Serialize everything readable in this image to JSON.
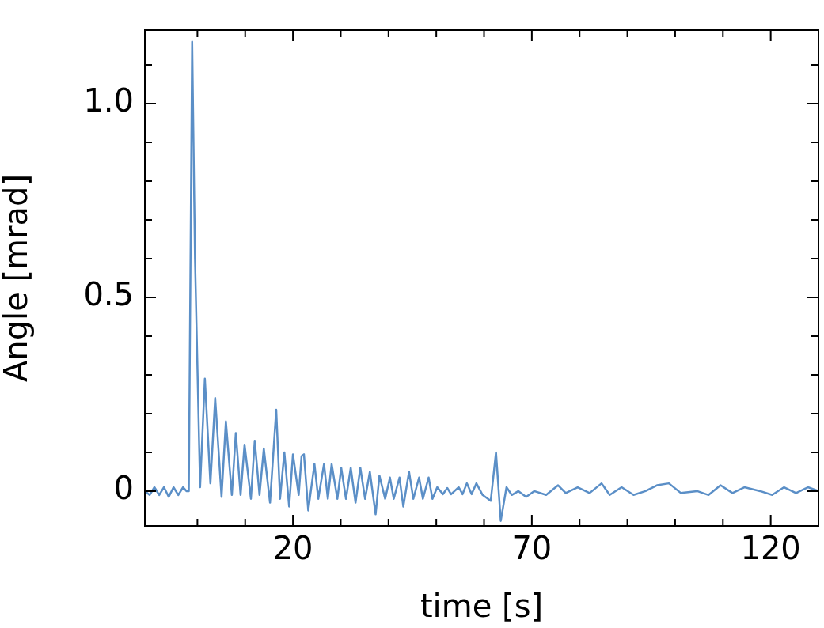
{
  "chart_data": {
    "type": "line",
    "xlabel": "time [s]",
    "ylabel": "Angle [mrad]",
    "xlim": [
      -11,
      130
    ],
    "ylim": [
      -0.09,
      1.19
    ],
    "xticks": [
      {
        "value": 0,
        "label": null
      },
      {
        "value": 10,
        "label": null
      },
      20,
      {
        "value": 30,
        "label": null
      },
      {
        "value": 40,
        "label": null
      },
      {
        "value": 50,
        "label": null
      },
      {
        "value": 60,
        "label": null
      },
      70,
      {
        "value": 80,
        "label": null
      },
      {
        "value": 90,
        "label": null
      },
      {
        "value": 100,
        "label": null
      },
      {
        "value": 110,
        "label": null
      },
      120
    ],
    "yticks": [
      0,
      {
        "value": 0.1,
        "label": null
      },
      {
        "value": 0.2,
        "label": null
      },
      {
        "value": 0.3,
        "label": null
      },
      {
        "value": 0.4,
        "label": null
      },
      0.5,
      {
        "value": 0.6,
        "label": null
      },
      {
        "value": 0.7,
        "label": null
      },
      {
        "value": 0.8,
        "label": null
      },
      {
        "value": 0.9,
        "label": null
      },
      {
        "value": 1.0,
        "label": "1.0"
      },
      {
        "value": 1.1,
        "label": null
      }
    ],
    "grid": false,
    "legend": false,
    "marker": "none",
    "line_style": "solid",
    "series": [
      {
        "color": "#5b8fc7",
        "x": [
          -11,
          -10,
          -9,
          -8,
          -7,
          -6,
          -5,
          -4,
          -3,
          -2.3,
          -1.8,
          -1.1,
          -0.5,
          0.56,
          1.56,
          2.72,
          3.72,
          5.05,
          5.96,
          7.21,
          8.04,
          9.04,
          9.87,
          11.2,
          12.0,
          13.0,
          13.9,
          15.2,
          16.5,
          17.3,
          18.2,
          19.2,
          20,
          21.2,
          21.8,
          22.3,
          23.2,
          24.5,
          25.3,
          26.5,
          27.3,
          28.1,
          29.3,
          30.1,
          31.1,
          32.1,
          33.1,
          34.1,
          35.1,
          36.1,
          37.3,
          38.1,
          39.3,
          40.3,
          41.1,
          42.3,
          43.1,
          44.3,
          45.2,
          46.4,
          47.2,
          48.4,
          49.2,
          50.2,
          51.4,
          52.3,
          53.1,
          54.7,
          55.5,
          56.4,
          57.4,
          58.4,
          59.7,
          61.4,
          62.5,
          63.5,
          64.7,
          65.8,
          67.2,
          68.8,
          70.5,
          73,
          75.5,
          77.1,
          79.6,
          82.1,
          84.6,
          86.3,
          88.8,
          91.3,
          93.8,
          96.2,
          98.7,
          101.2,
          104.6,
          107,
          109.5,
          112,
          114.5,
          117.8,
          120.3,
          122.8,
          125.3,
          127.8,
          130
        ],
        "values": [
          0,
          -0.01,
          0.01,
          -0.01,
          0.01,
          -0.015,
          0.01,
          -0.01,
          0.01,
          0,
          0,
          1.16,
          0.6,
          0.01,
          0.29,
          0.02,
          0.24,
          -0.015,
          0.18,
          -0.01,
          0.15,
          -0.01,
          0.12,
          -0.02,
          0.13,
          -0.01,
          0.11,
          -0.03,
          0.21,
          -0.02,
          0.1,
          -0.04,
          0.095,
          -0.01,
          0.09,
          0.095,
          -0.05,
          0.07,
          -0.02,
          0.07,
          -0.02,
          0.07,
          -0.02,
          0.06,
          -0.02,
          0.06,
          -0.03,
          0.06,
          -0.02,
          0.05,
          -0.06,
          0.04,
          -0.02,
          0.035,
          -0.02,
          0.035,
          -0.04,
          0.05,
          -0.02,
          0.035,
          -0.02,
          0.035,
          -0.02,
          0.01,
          -0.008,
          0.008,
          -0.008,
          0.01,
          -0.008,
          0.02,
          -0.008,
          0.02,
          -0.01,
          -0.025,
          0.1,
          -0.077,
          0.01,
          -0.01,
          0,
          -0.015,
          0,
          -0.01,
          0.015,
          -0.005,
          0.01,
          -0.005,
          0.02,
          -0.01,
          0.01,
          -0.01,
          0,
          0.015,
          0.02,
          -0.005,
          0,
          -0.01,
          0.015,
          -0.005,
          0.01,
          0,
          -0.01,
          0.01,
          -0.005,
          0.01,
          0
        ]
      }
    ]
  }
}
